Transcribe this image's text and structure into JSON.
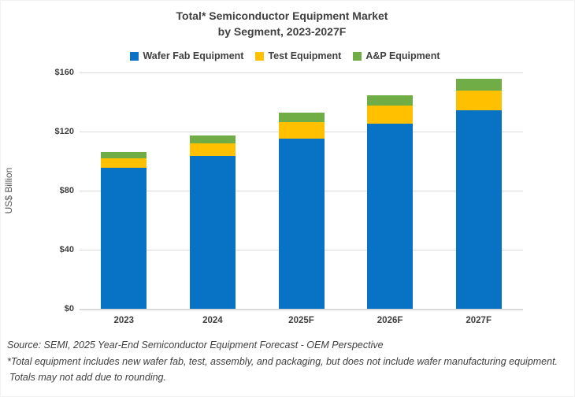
{
  "title": {
    "line1": "Total* Semiconductor Equipment Market",
    "line2": "by Segment, 2023-2027F"
  },
  "legend": [
    {
      "label": "Wafer Fab Equipment",
      "color": "#0873C4"
    },
    {
      "label": "Test Equipment",
      "color": "#FFC000"
    },
    {
      "label": "A&P Equipment",
      "color": "#70AD47"
    }
  ],
  "y_axis": {
    "title": "US$ Billion",
    "ticks": [
      "$160",
      "$120",
      "$80",
      "$40",
      "$0"
    ]
  },
  "footer": {
    "line1": "Source: SEMI, 2025 Year-End Semiconductor Equipment Forecast - OEM Perspective",
    "line2": "*Total equipment includes new wafer fab, test, assembly, and packaging, but does not include wafer manufacturing equipment.",
    "line3": "Totals may not add due to rounding."
  },
  "chart_data": {
    "type": "bar",
    "stacked": true,
    "title": "Total* Semiconductor Equipment Market by Segment, 2023-2027F",
    "xlabel": "",
    "ylabel": "US$ Billion",
    "ylim": [
      0,
      160
    ],
    "ytick_step": 40,
    "ytick_labels": [
      "$0",
      "$40",
      "$80",
      "$120",
      "$160"
    ],
    "grid": true,
    "legend_position": "top",
    "categories": [
      "2023",
      "2024",
      "2025F",
      "2026F",
      "2027F"
    ],
    "series": [
      {
        "name": "Wafer Fab Equipment",
        "color": "#0873C4",
        "values": [
          95.5,
          103.5,
          115.0,
          125.5,
          134.5
        ]
      },
      {
        "name": "Test Equipment",
        "color": "#FFC000",
        "values": [
          6.5,
          8.5,
          11.5,
          12.0,
          13.0
        ]
      },
      {
        "name": "A&P Equipment",
        "color": "#70AD47",
        "values": [
          4.0,
          5.5,
          6.5,
          7.0,
          8.0
        ]
      }
    ],
    "totals_approx": [
      106.0,
      117.5,
      133.0,
      144.5,
      155.5
    ]
  }
}
